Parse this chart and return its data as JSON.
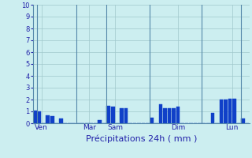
{
  "title": "Précipitations 24h ( mm )",
  "ylim": [
    0,
    10
  ],
  "yticks": [
    0,
    1,
    2,
    3,
    4,
    5,
    6,
    7,
    8,
    9,
    10
  ],
  "bar_color": "#1040c8",
  "bg_color": "#cceef0",
  "grid_color": "#a0c8cc",
  "sep_color": "#5588aa",
  "values": [
    1.1,
    1.0,
    0.0,
    0.7,
    0.6,
    0.0,
    0.4,
    0.0,
    0.0,
    0.0,
    0.0,
    0.0,
    0.0,
    0.0,
    0.0,
    0.3,
    0.0,
    1.5,
    1.4,
    0.0,
    1.3,
    1.3,
    0.0,
    0.0,
    0.0,
    0.0,
    0.0,
    0.5,
    0.0,
    1.6,
    1.3,
    1.3,
    1.3,
    1.4,
    0.0,
    0.0,
    0.0,
    0.0,
    0.0,
    0.0,
    0.0,
    0.9,
    0.0,
    2.0,
    2.0,
    2.1,
    2.1,
    0.0,
    0.4,
    0.0
  ],
  "n_bars": 50,
  "day_labels": [
    "Ven",
    "Mar",
    "Sam",
    "Dim",
    "Lun"
  ],
  "day_tick_positions": [
    1.5,
    12.5,
    18.5,
    33.0,
    45.5
  ],
  "day_sep_positions": [
    0.5,
    9.5,
    16.5,
    26.5,
    38.5,
    47.5
  ],
  "title_fontsize": 8,
  "tick_fontsize": 6,
  "day_label_fontsize": 6.5,
  "tick_color": "#2222aa",
  "label_color": "#2222aa"
}
